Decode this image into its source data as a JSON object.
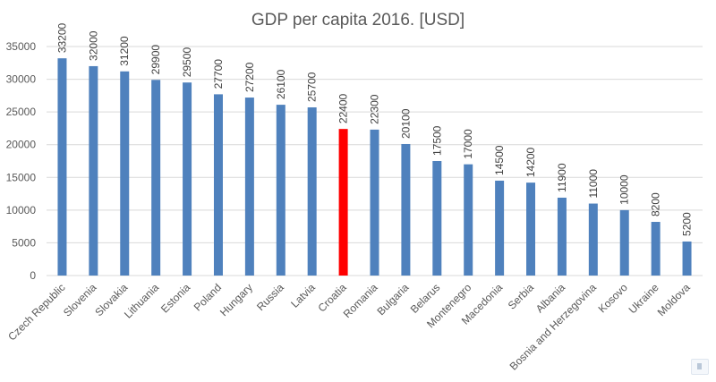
{
  "chart_data": {
    "type": "bar",
    "title": "GDP per capita 2016. [USD]",
    "xlabel": "",
    "ylabel": "",
    "ylim": [
      0,
      35000
    ],
    "yticks": [
      0,
      5000,
      10000,
      15000,
      20000,
      25000,
      30000,
      35000
    ],
    "grid": true,
    "categories": [
      "Czech Republic",
      "Slovenia",
      "Slovakia",
      "Lithuania",
      "Estonia",
      "Poland",
      "Hungary",
      "Russia",
      "Latvia",
      "Croatia",
      "Romania",
      "Bulgaria",
      "Belarus",
      "Montenegro",
      "Macedonia",
      "Serbia",
      "Albania",
      "Bosnia and Herzegovina",
      "Kosovo",
      "Ukraine",
      "Moldova"
    ],
    "values": [
      33200,
      32000,
      31200,
      29900,
      29500,
      27700,
      27200,
      26100,
      25700,
      22400,
      22300,
      20100,
      17500,
      17000,
      14500,
      14200,
      11900,
      11000,
      10000,
      8200,
      5200
    ],
    "highlight": "Croatia",
    "colors": {
      "bar": "#4f81bd",
      "highlight": "#ff0000",
      "grid": "#d9d9d9",
      "axis": "#d9d9d9"
    }
  }
}
